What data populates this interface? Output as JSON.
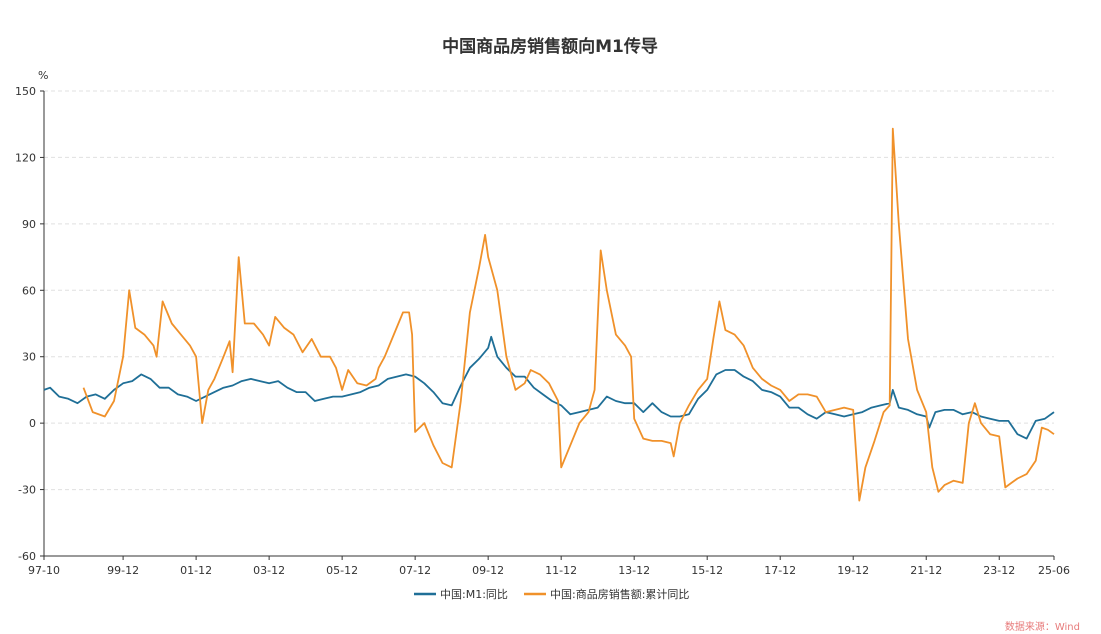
{
  "chart_data": {
    "type": "line",
    "title": "中国商品房销售额向M1传导",
    "ylabel": "%",
    "ylim": [
      -60,
      150
    ],
    "yticks": [
      -60,
      -30,
      0,
      30,
      60,
      90,
      120,
      150
    ],
    "xlim": [
      "97-10",
      "25-06"
    ],
    "xticks": [
      "97-10",
      "99-12",
      "01-12",
      "03-12",
      "05-12",
      "07-12",
      "09-12",
      "11-12",
      "13-12",
      "15-12",
      "17-12",
      "19-12",
      "21-12",
      "23-12",
      "25-06"
    ],
    "grid": true,
    "legend_position": "bottom-center",
    "watermark": "数据来源：Wind",
    "series": [
      {
        "name": "中国:M1:同比",
        "color": "#1f6f97",
        "points": [
          [
            "97-10",
            15
          ],
          [
            "97-12",
            16
          ],
          [
            "98-03",
            12
          ],
          [
            "98-06",
            11
          ],
          [
            "98-09",
            9
          ],
          [
            "98-12",
            12
          ],
          [
            "99-03",
            13
          ],
          [
            "99-06",
            11
          ],
          [
            "99-09",
            15
          ],
          [
            "99-12",
            18
          ],
          [
            "00-03",
            19
          ],
          [
            "00-06",
            22
          ],
          [
            "00-09",
            20
          ],
          [
            "00-12",
            16
          ],
          [
            "01-03",
            16
          ],
          [
            "01-06",
            13
          ],
          [
            "01-09",
            12
          ],
          [
            "01-12",
            10
          ],
          [
            "02-03",
            12
          ],
          [
            "02-06",
            14
          ],
          [
            "02-09",
            16
          ],
          [
            "02-12",
            17
          ],
          [
            "03-03",
            19
          ],
          [
            "03-06",
            20
          ],
          [
            "03-09",
            19
          ],
          [
            "03-12",
            18
          ],
          [
            "04-03",
            19
          ],
          [
            "04-06",
            16
          ],
          [
            "04-09",
            14
          ],
          [
            "04-12",
            14
          ],
          [
            "05-03",
            10
          ],
          [
            "05-06",
            11
          ],
          [
            "05-09",
            12
          ],
          [
            "05-12",
            12
          ],
          [
            "06-03",
            13
          ],
          [
            "06-06",
            14
          ],
          [
            "06-09",
            16
          ],
          [
            "06-12",
            17
          ],
          [
            "07-03",
            20
          ],
          [
            "07-06",
            21
          ],
          [
            "07-09",
            22
          ],
          [
            "07-12",
            21
          ],
          [
            "08-03",
            18
          ],
          [
            "08-06",
            14
          ],
          [
            "08-09",
            9
          ],
          [
            "08-12",
            8
          ],
          [
            "09-03",
            17
          ],
          [
            "09-06",
            25
          ],
          [
            "09-09",
            29
          ],
          [
            "09-12",
            34
          ],
          [
            "10-01",
            39
          ],
          [
            "10-03",
            30
          ],
          [
            "10-06",
            25
          ],
          [
            "10-09",
            21
          ],
          [
            "10-12",
            21
          ],
          [
            "11-03",
            16
          ],
          [
            "11-06",
            13
          ],
          [
            "11-09",
            10
          ],
          [
            "11-12",
            8
          ],
          [
            "12-03",
            4
          ],
          [
            "12-06",
            5
          ],
          [
            "12-09",
            6
          ],
          [
            "12-12",
            7
          ],
          [
            "13-03",
            12
          ],
          [
            "13-06",
            10
          ],
          [
            "13-09",
            9
          ],
          [
            "13-12",
            9
          ],
          [
            "14-03",
            5
          ],
          [
            "14-06",
            9
          ],
          [
            "14-09",
            5
          ],
          [
            "14-12",
            3
          ],
          [
            "15-03",
            3
          ],
          [
            "15-06",
            4
          ],
          [
            "15-09",
            11
          ],
          [
            "15-12",
            15
          ],
          [
            "16-03",
            22
          ],
          [
            "16-06",
            24
          ],
          [
            "16-09",
            24
          ],
          [
            "16-12",
            21
          ],
          [
            "17-03",
            19
          ],
          [
            "17-06",
            15
          ],
          [
            "17-09",
            14
          ],
          [
            "17-12",
            12
          ],
          [
            "18-03",
            7
          ],
          [
            "18-06",
            7
          ],
          [
            "18-09",
            4
          ],
          [
            "18-12",
            2
          ],
          [
            "19-03",
            5
          ],
          [
            "19-06",
            4
          ],
          [
            "19-09",
            3
          ],
          [
            "19-12",
            4
          ],
          [
            "20-03",
            5
          ],
          [
            "20-06",
            7
          ],
          [
            "20-09",
            8
          ],
          [
            "20-12",
            9
          ],
          [
            "21-01",
            15
          ],
          [
            "21-03",
            7
          ],
          [
            "21-06",
            6
          ],
          [
            "21-09",
            4
          ],
          [
            "21-12",
            3
          ],
          [
            "22-01",
            -2
          ],
          [
            "22-03",
            5
          ],
          [
            "22-06",
            6
          ],
          [
            "22-09",
            6
          ],
          [
            "22-12",
            4
          ],
          [
            "23-03",
            5
          ],
          [
            "23-06",
            3
          ],
          [
            "23-09",
            2
          ],
          [
            "23-12",
            1
          ],
          [
            "24-03",
            1
          ],
          [
            "24-06",
            -5
          ],
          [
            "24-09",
            -7
          ],
          [
            "24-12",
            1
          ],
          [
            "25-03",
            2
          ],
          [
            "25-06",
            5
          ]
        ]
      },
      {
        "name": "中国:商品房销售额:累计同比",
        "color": "#f0912a",
        "points": [
          [
            "98-11",
            16
          ],
          [
            "99-02",
            5
          ],
          [
            "99-06",
            3
          ],
          [
            "99-09",
            10
          ],
          [
            "99-12",
            30
          ],
          [
            "00-02",
            60
          ],
          [
            "00-04",
            43
          ],
          [
            "00-07",
            40
          ],
          [
            "00-10",
            35
          ],
          [
            "00-11",
            30
          ],
          [
            "01-01",
            55
          ],
          [
            "01-04",
            45
          ],
          [
            "01-07",
            40
          ],
          [
            "01-10",
            35
          ],
          [
            "01-12",
            30
          ],
          [
            "02-02",
            0
          ],
          [
            "02-04",
            15
          ],
          [
            "02-06",
            20
          ],
          [
            "02-09",
            30
          ],
          [
            "02-11",
            37
          ],
          [
            "02-12",
            23
          ],
          [
            "03-02",
            75
          ],
          [
            "03-04",
            45
          ],
          [
            "03-07",
            45
          ],
          [
            "03-10",
            40
          ],
          [
            "03-12",
            35
          ],
          [
            "04-02",
            48
          ],
          [
            "04-05",
            43
          ],
          [
            "04-08",
            40
          ],
          [
            "04-11",
            32
          ],
          [
            "05-02",
            38
          ],
          [
            "05-05",
            30
          ],
          [
            "05-08",
            30
          ],
          [
            "05-10",
            25
          ],
          [
            "05-12",
            15
          ],
          [
            "06-02",
            24
          ],
          [
            "06-05",
            18
          ],
          [
            "06-08",
            17
          ],
          [
            "06-11",
            20
          ],
          [
            "06-12",
            25
          ],
          [
            "07-02",
            30
          ],
          [
            "07-05",
            40
          ],
          [
            "07-08",
            50
          ],
          [
            "07-10",
            50
          ],
          [
            "07-11",
            40
          ],
          [
            "07-12",
            -4
          ],
          [
            "08-03",
            0
          ],
          [
            "08-06",
            -10
          ],
          [
            "08-09",
            -18
          ],
          [
            "08-12",
            -20
          ],
          [
            "09-03",
            10
          ],
          [
            "09-06",
            50
          ],
          [
            "09-09",
            70
          ],
          [
            "09-11",
            85
          ],
          [
            "09-12",
            75
          ],
          [
            "10-03",
            60
          ],
          [
            "10-06",
            30
          ],
          [
            "10-09",
            15
          ],
          [
            "10-12",
            18
          ],
          [
            "11-02",
            24
          ],
          [
            "11-05",
            22
          ],
          [
            "11-08",
            18
          ],
          [
            "11-11",
            10
          ],
          [
            "11-12",
            -20
          ],
          [
            "12-03",
            -10
          ],
          [
            "12-06",
            0
          ],
          [
            "12-09",
            5
          ],
          [
            "12-11",
            15
          ],
          [
            "13-01",
            78
          ],
          [
            "13-03",
            60
          ],
          [
            "13-06",
            40
          ],
          [
            "13-09",
            35
          ],
          [
            "13-11",
            30
          ],
          [
            "13-12",
            2
          ],
          [
            "14-03",
            -7
          ],
          [
            "14-06",
            -8
          ],
          [
            "14-09",
            -8
          ],
          [
            "14-12",
            -9
          ],
          [
            "15-01",
            -15
          ],
          [
            "15-03",
            0
          ],
          [
            "15-06",
            8
          ],
          [
            "15-09",
            15
          ],
          [
            "15-12",
            20
          ],
          [
            "16-02",
            38
          ],
          [
            "16-04",
            55
          ],
          [
            "16-06",
            42
          ],
          [
            "16-09",
            40
          ],
          [
            "16-12",
            35
          ],
          [
            "17-03",
            25
          ],
          [
            "17-06",
            20
          ],
          [
            "17-09",
            17
          ],
          [
            "17-12",
            15
          ],
          [
            "18-03",
            10
          ],
          [
            "18-06",
            13
          ],
          [
            "18-09",
            13
          ],
          [
            "18-12",
            12
          ],
          [
            "19-03",
            5
          ],
          [
            "19-06",
            6
          ],
          [
            "19-09",
            7
          ],
          [
            "19-12",
            6
          ],
          [
            "20-02",
            -35
          ],
          [
            "20-04",
            -20
          ],
          [
            "20-07",
            -8
          ],
          [
            "20-10",
            5
          ],
          [
            "20-12",
            8
          ],
          [
            "21-01",
            133
          ],
          [
            "21-03",
            90
          ],
          [
            "21-06",
            38
          ],
          [
            "21-09",
            15
          ],
          [
            "21-12",
            5
          ],
          [
            "22-02",
            -20
          ],
          [
            "22-04",
            -31
          ],
          [
            "22-06",
            -28
          ],
          [
            "22-09",
            -26
          ],
          [
            "22-12",
            -27
          ],
          [
            "23-02",
            0
          ],
          [
            "23-04",
            9
          ],
          [
            "23-06",
            0
          ],
          [
            "23-09",
            -5
          ],
          [
            "23-12",
            -6
          ],
          [
            "24-02",
            -29
          ],
          [
            "24-04",
            -27
          ],
          [
            "24-06",
            -25
          ],
          [
            "24-09",
            -23
          ],
          [
            "24-12",
            -17
          ],
          [
            "25-02",
            -2
          ],
          [
            "25-04",
            -3
          ],
          [
            "25-06",
            -5
          ]
        ]
      }
    ]
  }
}
